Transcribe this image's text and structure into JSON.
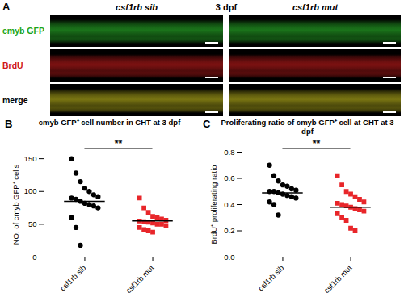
{
  "panel_a": {
    "letter": "A",
    "header": "3 dpf",
    "columns": [
      "csf1rb sib",
      "csf1rb mut"
    ],
    "rows": [
      "cmyb GFP",
      "BrdU",
      "merge"
    ]
  },
  "chart_data": [
    {
      "panel_label": "B",
      "type": "scatter",
      "title": "cmyb GFP⁺ cell number in CHT at 3 dpf",
      "ylabel": "NO. of cmyb GFP⁺ cells",
      "series": [
        {
          "name": "csf1rb sib",
          "color": "#000000",
          "marker": "circle",
          "values": [
            150,
            128,
            115,
            105,
            100,
            95,
            92,
            90,
            88,
            85,
            82,
            80,
            78,
            75,
            60,
            45,
            18
          ]
        },
        {
          "name": "csf1rb mut",
          "color": "#e8262a",
          "marker": "square",
          "values": [
            90,
            75,
            68,
            62,
            60,
            58,
            56,
            55,
            54,
            53,
            52,
            50,
            50,
            48,
            45,
            42,
            40,
            38
          ]
        }
      ],
      "means": [
        85,
        55
      ],
      "annotations": [
        "**"
      ],
      "ylim": [
        0,
        160
      ],
      "yticks": [
        0,
        50,
        100,
        150
      ]
    },
    {
      "panel_label": "C",
      "type": "scatter",
      "title": "Proliferating ratio of cmyb GFP⁺ cell at CHT at 3 dpf",
      "ylabel": "BrdU⁺ proliferating ratio",
      "series": [
        {
          "name": "csf1rb sib",
          "color": "#000000",
          "marker": "circle",
          "values": [
            0.7,
            0.62,
            0.58,
            0.55,
            0.54,
            0.52,
            0.51,
            0.5,
            0.5,
            0.49,
            0.48,
            0.47,
            0.46,
            0.45,
            0.42,
            0.4,
            0.32
          ]
        },
        {
          "name": "csf1rb mut",
          "color": "#e8262a",
          "marker": "square",
          "values": [
            0.62,
            0.55,
            0.5,
            0.48,
            0.46,
            0.44,
            0.42,
            0.41,
            0.4,
            0.39,
            0.38,
            0.37,
            0.36,
            0.35,
            0.33,
            0.3,
            0.28,
            0.22,
            0.2
          ]
        }
      ],
      "means": [
        0.49,
        0.38
      ],
      "annotations": [
        "**"
      ],
      "ylim": [
        0,
        0.8
      ],
      "yticks": [
        {
          "value": 0,
          "label": "0.0"
        },
        0.2,
        0.4,
        0.6,
        0.8
      ]
    }
  ]
}
